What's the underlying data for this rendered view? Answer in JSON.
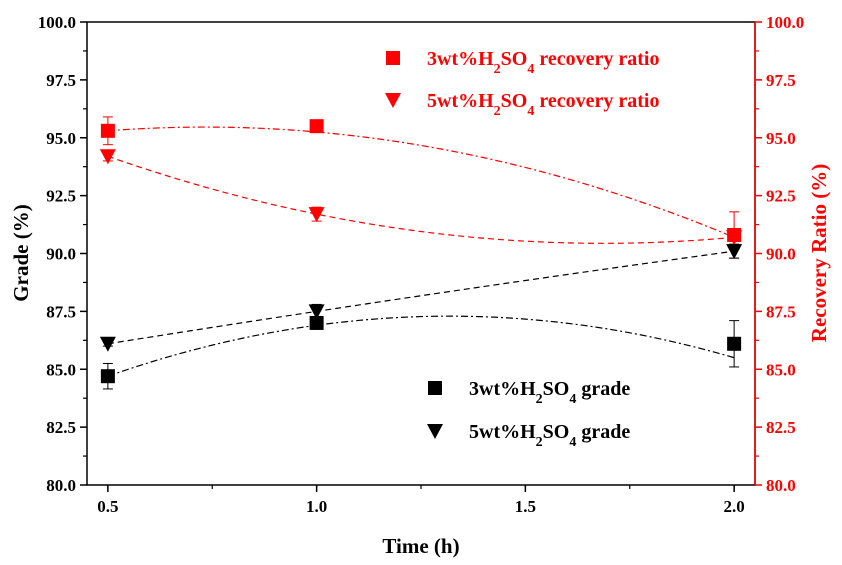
{
  "chart_data": {
    "type": "scatter",
    "xlabel": "Time (h)",
    "ylabel_left": "Grade (%)",
    "ylabel_right": "Recovery Ratio (%)",
    "xlim": [
      0.45,
      2.05
    ],
    "xticks": [
      "0.5",
      "1.0",
      "1.5",
      "2.0"
    ],
    "xtick_values": [
      0.5,
      1.0,
      1.5,
      2.0
    ],
    "ylim_left": [
      80.0,
      100.0
    ],
    "ylim_right": [
      80.0,
      100.0
    ],
    "yticks": [
      "80.0",
      "82.5",
      "85.0",
      "87.5",
      "90.0",
      "92.5",
      "95.0",
      "97.5",
      "100.0"
    ],
    "ytick_values": [
      80.0,
      82.5,
      85.0,
      87.5,
      90.0,
      92.5,
      95.0,
      97.5,
      100.0
    ],
    "grid": false,
    "colors": {
      "grade": "#000000",
      "recovery": "#ff0000"
    },
    "series": [
      {
        "name_parts": [
          "3wt%H",
          "2",
          "SO",
          "4",
          " recovery ratio"
        ],
        "axis": "right",
        "marker": "square",
        "color": "#ff0000",
        "x": [
          0.5,
          1.0,
          2.0
        ],
        "y": [
          95.3,
          95.5,
          90.8
        ],
        "err": [
          0.6,
          0.15,
          1.0
        ],
        "fit": "dash-dot",
        "fit_y": [
          95.3,
          95.25,
          90.7
        ]
      },
      {
        "name_parts": [
          "5wt%H",
          "2",
          "SO",
          "4",
          " recovery ratio"
        ],
        "axis": "right",
        "marker": "triangle-down",
        "color": "#ff0000",
        "x": [
          0.5,
          1.0,
          2.0
        ],
        "y": [
          94.2,
          91.7,
          90.7
        ],
        "err": [
          0.2,
          0.3,
          0.3
        ],
        "fit": "dashed",
        "fit_y": [
          94.2,
          91.7,
          90.7
        ]
      },
      {
        "name_parts": [
          "3wt%H",
          "2",
          "SO",
          "4",
          " grade"
        ],
        "axis": "left",
        "marker": "square",
        "color": "#000000",
        "x": [
          0.5,
          1.0,
          2.0
        ],
        "y": [
          84.7,
          87.0,
          86.1
        ],
        "err": [
          0.55,
          0.15,
          1.0
        ],
        "fit": "dash-dot",
        "fit_y": [
          84.7,
          86.9,
          85.5
        ]
      },
      {
        "name_parts": [
          "5wt%H",
          "2",
          "SO",
          "4",
          " grade"
        ],
        "axis": "left",
        "marker": "triangle-down",
        "color": "#000000",
        "x": [
          0.5,
          1.0,
          2.0
        ],
        "y": [
          86.1,
          87.5,
          90.1
        ],
        "err": [
          0.1,
          0.3,
          0.3
        ],
        "fit": "dashed",
        "fit_y": [
          86.1,
          87.5,
          90.1
        ]
      }
    ],
    "legend_placement": [
      "top-right",
      "bottom-right"
    ]
  }
}
